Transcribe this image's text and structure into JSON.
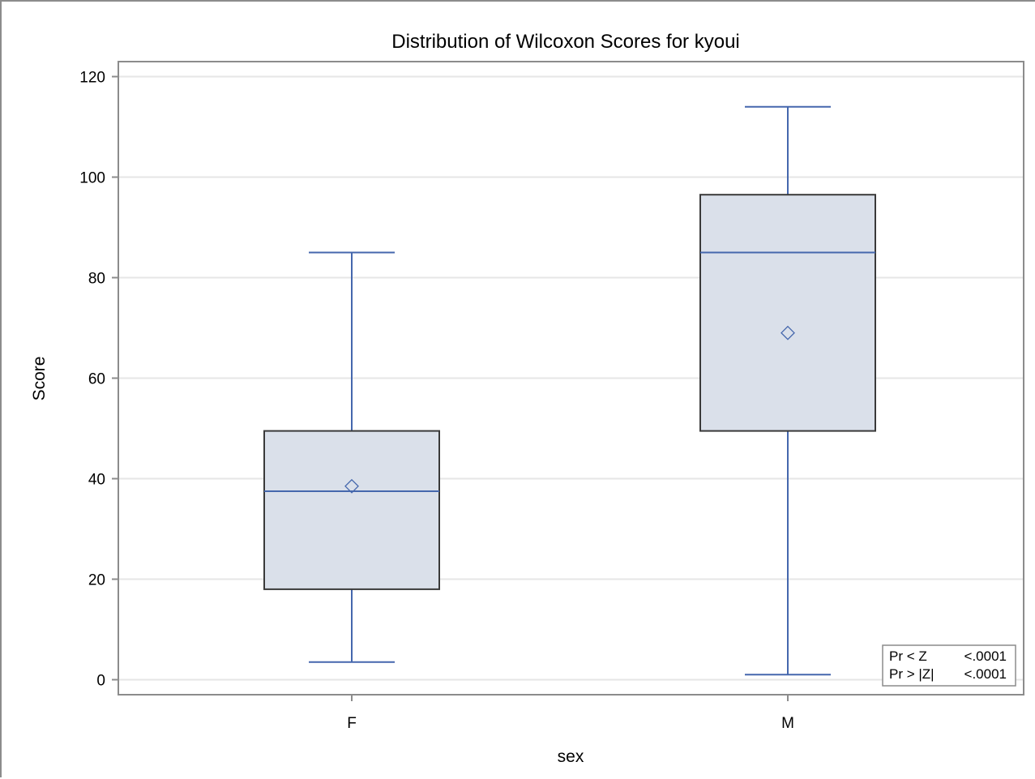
{
  "chart_data": {
    "type": "box",
    "title": "Distribution of Wilcoxon Scores for kyoui",
    "xlabel": "sex",
    "ylabel": "Score",
    "ylim": [
      -3,
      123
    ],
    "yticks": [
      0,
      20,
      40,
      60,
      80,
      100,
      120
    ],
    "grid": true,
    "categories": [
      "F",
      "M"
    ],
    "boxes": [
      {
        "category": "F",
        "whisker_low": 3.5,
        "q1": 18,
        "median": 37.5,
        "q3": 49.5,
        "whisker_high": 85,
        "mean": 38.5
      },
      {
        "category": "M",
        "whisker_low": 1,
        "q1": 49.5,
        "median": 85,
        "q3": 96.5,
        "whisker_high": 114,
        "mean": 69
      }
    ],
    "inset_table": [
      {
        "label": "Pr < Z",
        "value": "<.0001"
      },
      {
        "label": "Pr > |Z|",
        "value": "<.0001"
      }
    ],
    "colors": {
      "box_fill": "#dae0ea",
      "box_border": "#3a3a3a",
      "whisker": "#4567ad",
      "median": "#4567ad",
      "mean_marker": "#4567ad",
      "grid": "#e6e6e6",
      "axis": "#8c8c8c"
    }
  }
}
